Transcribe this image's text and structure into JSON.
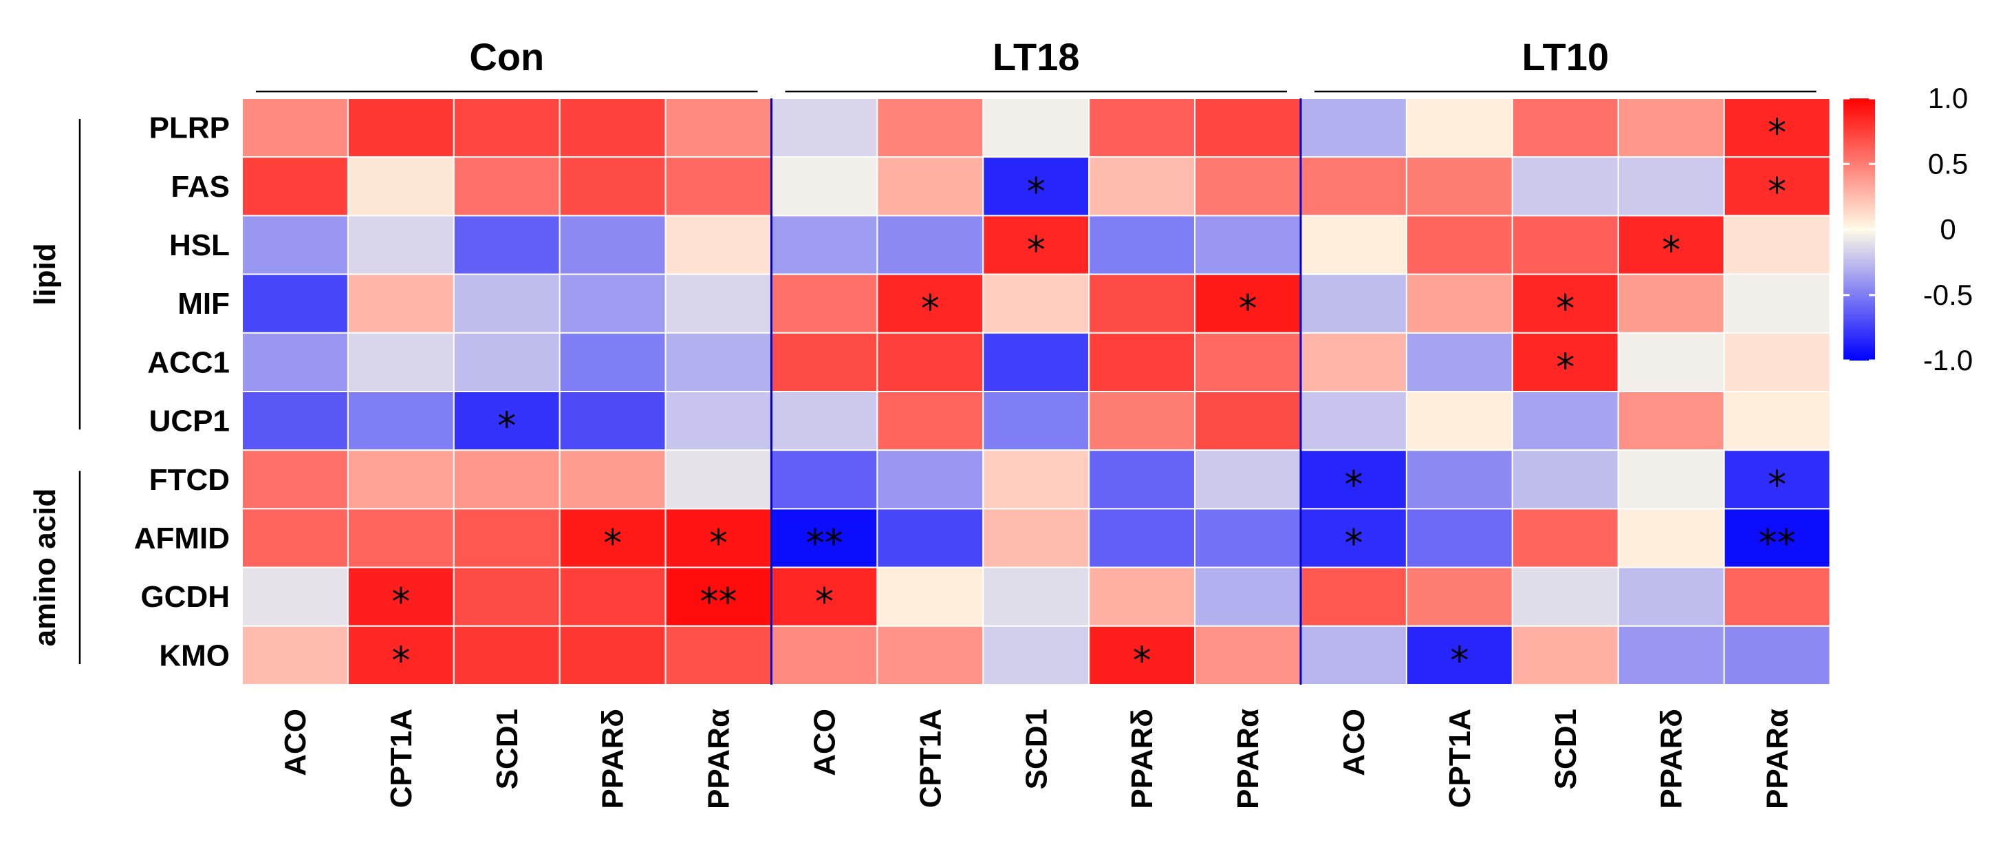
{
  "chart_data": {
    "type": "heatmap",
    "groups": [
      "Con",
      "LT18",
      "LT10"
    ],
    "columns": [
      "ACO",
      "CPT1A",
      "SCD1",
      "PPARδ",
      "PPARα"
    ],
    "rows": [
      "PLRP",
      "FAS",
      "HSL",
      "MIF",
      "ACC1",
      "UCP1",
      "FTCD",
      "AFMID",
      "GCDH",
      "KMO"
    ],
    "row_groups": [
      {
        "label": "lipid",
        "rows": [
          "PLRP",
          "FAS",
          "HSL",
          "MIF",
          "ACC1",
          "UCP1"
        ]
      },
      {
        "label": "amino acid",
        "rows": [
          "FTCD",
          "AFMID",
          "GCDH",
          "KMO"
        ]
      }
    ],
    "values": [
      [
        0.45,
        0.78,
        0.72,
        0.74,
        0.45,
        -0.15,
        0.48,
        -0.05,
        0.62,
        0.72,
        -0.3,
        0.05,
        0.55,
        0.4,
        0.85
      ],
      [
        0.75,
        0.08,
        0.55,
        0.7,
        0.58,
        -0.05,
        0.3,
        -0.85,
        0.25,
        0.52,
        0.52,
        0.5,
        -0.2,
        -0.2,
        0.82
      ],
      [
        -0.4,
        -0.15,
        -0.62,
        -0.45,
        0.1,
        -0.38,
        -0.45,
        0.85,
        -0.5,
        -0.4,
        0.05,
        0.6,
        0.62,
        0.85,
        0.1
      ],
      [
        -0.72,
        0.28,
        -0.25,
        -0.38,
        -0.15,
        0.55,
        0.85,
        0.18,
        0.7,
        0.9,
        -0.25,
        0.35,
        0.85,
        0.38,
        -0.05
      ],
      [
        -0.4,
        -0.15,
        -0.25,
        -0.5,
        -0.3,
        0.7,
        0.75,
        -0.75,
        0.75,
        0.58,
        0.28,
        -0.35,
        0.85,
        -0.05,
        0.1
      ],
      [
        -0.65,
        -0.5,
        -0.8,
        -0.7,
        -0.22,
        -0.2,
        0.6,
        -0.5,
        0.5,
        0.7,
        -0.22,
        0.05,
        -0.35,
        0.42,
        0.05
      ],
      [
        0.55,
        0.35,
        0.4,
        0.38,
        -0.1,
        -0.62,
        -0.4,
        0.18,
        -0.6,
        -0.2,
        -0.85,
        -0.45,
        -0.25,
        -0.05,
        -0.82
      ],
      [
        0.6,
        0.6,
        0.65,
        0.9,
        0.92,
        -0.95,
        -0.72,
        0.25,
        -0.62,
        -0.55,
        -0.82,
        -0.58,
        0.6,
        0.05,
        -0.95
      ],
      [
        -0.1,
        0.88,
        0.7,
        0.75,
        0.95,
        0.85,
        0.05,
        -0.12,
        0.3,
        -0.3,
        0.65,
        0.5,
        -0.12,
        -0.25,
        0.6
      ],
      [
        0.25,
        0.85,
        0.78,
        0.78,
        0.68,
        0.45,
        0.42,
        -0.18,
        0.88,
        0.42,
        -0.28,
        -0.85,
        0.3,
        -0.4,
        -0.45
      ]
    ],
    "significance": [
      [
        "",
        "",
        "",
        "",
        "",
        "",
        "",
        "",
        "",
        "",
        "",
        "",
        "",
        "",
        "*"
      ],
      [
        "",
        "",
        "",
        "",
        "",
        "",
        "",
        "*",
        "",
        "",
        "",
        "",
        "",
        "",
        "*"
      ],
      [
        "",
        "",
        "",
        "",
        "",
        "",
        "",
        "*",
        "",
        "",
        "",
        "",
        "",
        "*",
        ""
      ],
      [
        "",
        "",
        "",
        "",
        "",
        "",
        "*",
        "",
        "",
        "*",
        "",
        "",
        "*",
        "",
        ""
      ],
      [
        "",
        "",
        "",
        "",
        "",
        "",
        "",
        "",
        "",
        "",
        "",
        "",
        "*",
        "",
        ""
      ],
      [
        "",
        "",
        "*",
        "",
        "",
        "",
        "",
        "",
        "",
        "",
        "",
        "",
        "",
        "",
        ""
      ],
      [
        "",
        "",
        "",
        "",
        "",
        "",
        "",
        "",
        "",
        "",
        "*",
        "",
        "",
        "",
        "*"
      ],
      [
        "",
        "",
        "",
        "*",
        "*",
        "**",
        "",
        "",
        "",
        "",
        "*",
        "",
        "",
        "",
        "**"
      ],
      [
        "",
        "*",
        "",
        "",
        "**",
        "*",
        "",
        "",
        "",
        "",
        "",
        "",
        "",
        "",
        ""
      ],
      [
        "",
        "*",
        "",
        "",
        "",
        "",
        "",
        "",
        "*",
        "",
        "",
        "*",
        "",
        "",
        ""
      ]
    ],
    "color_scale": {
      "low": "#0000ff",
      "mid": "#fffbe8",
      "high": "#ff0000",
      "min": -1.0,
      "max": 1.0
    },
    "legend_ticks": [
      "1.0",
      "0.5",
      "0",
      "-0.5",
      "-1.0"
    ],
    "legend_tick_values": [
      1.0,
      0.5,
      0,
      -0.5,
      -1.0
    ],
    "group_separator_color": "#0000cc"
  }
}
